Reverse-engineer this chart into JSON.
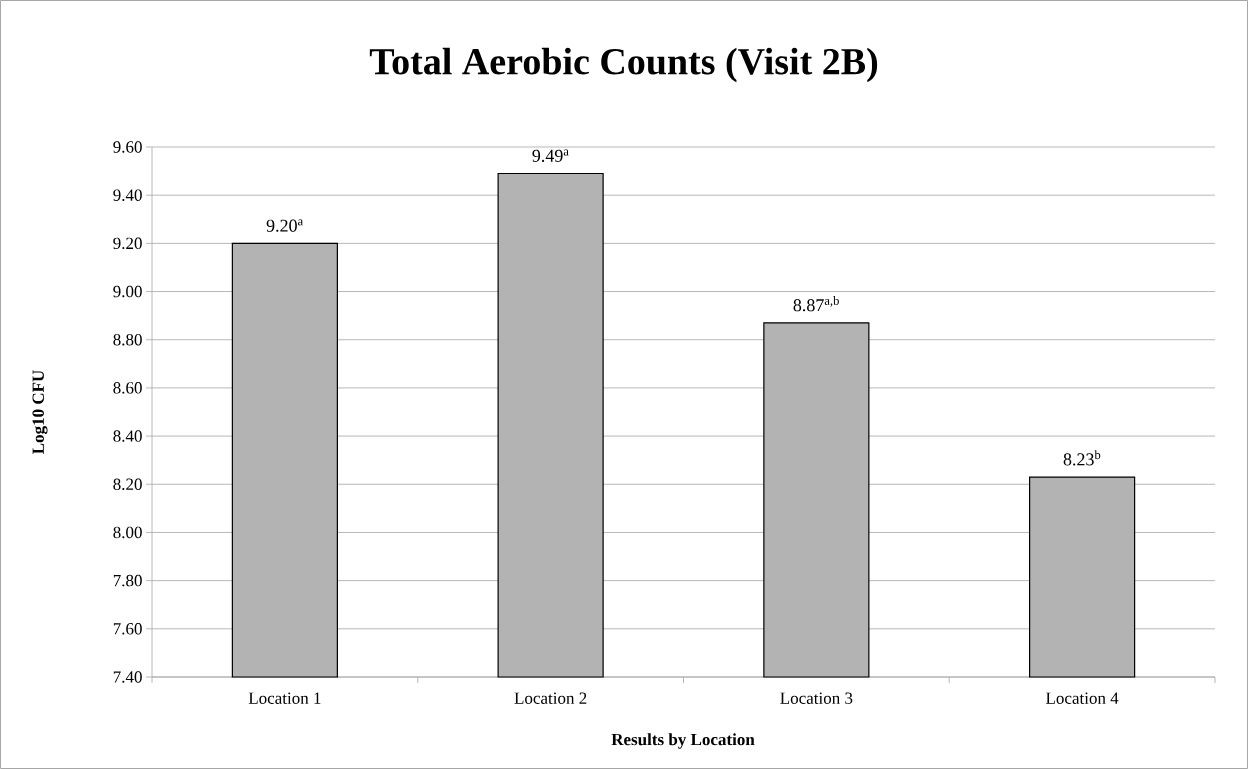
{
  "chart_data": {
    "type": "bar",
    "title": "Total Aerobic Counts (Visit 2B)",
    "xlabel": "Results by Location",
    "ylabel": "Log10 CFU",
    "categories": [
      "Location 1",
      "Location 2",
      "Location 3",
      "Location 4"
    ],
    "values": [
      9.2,
      9.49,
      8.87,
      8.23
    ],
    "value_labels": [
      "9.20$^{a}$",
      "9.49$^{a}$",
      "8.87$^{a,b}$",
      "8.23$^{b}$"
    ],
    "color": "#b3b3b3",
    "ylim": [
      7.4,
      9.6
    ],
    "yticks": [
      {
        "value": 7.4,
        "label": "7.40"
      },
      {
        "value": 7.6,
        "label": "7.60"
      },
      {
        "value": 7.8,
        "label": "7.80"
      },
      {
        "value": 8.0,
        "label": "8.00"
      },
      {
        "value": 8.2,
        "label": "8.20"
      },
      {
        "value": 8.4,
        "label": "8.40"
      },
      {
        "value": 8.6,
        "label": "8.60"
      },
      {
        "value": 8.8,
        "label": "8.80"
      },
      {
        "value": 9.0,
        "label": "9.00"
      },
      {
        "value": 9.2,
        "label": "9.20"
      },
      {
        "value": 9.4,
        "label": "9.40"
      },
      {
        "value": 9.6,
        "label": "9.60"
      }
    ],
    "grid": "y"
  }
}
